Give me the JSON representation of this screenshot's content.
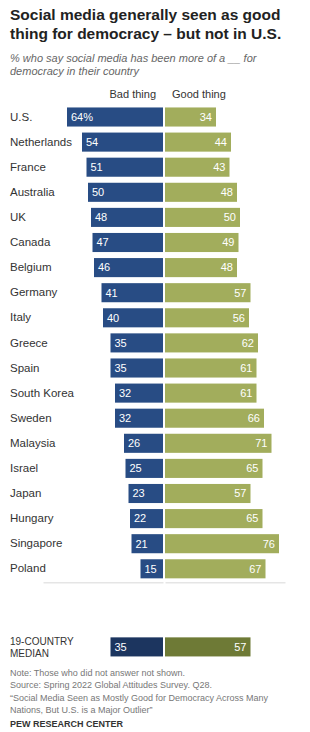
{
  "chart_data": {
    "type": "bar",
    "orientation": "horizontal",
    "title": "Social media generally seen as good thing for democracy – but not in U.S.",
    "subtitle": "% who say social media has been more of a __ for democracy in their country",
    "categories": [
      "U.S.",
      "Netherlands",
      "France",
      "Australia",
      "UK",
      "Canada",
      "Belgium",
      "Germany",
      "Italy",
      "Greece",
      "Spain",
      "South Korea",
      "Sweden",
      "Malaysia",
      "Israel",
      "Japan",
      "Hungary",
      "Singapore",
      "Poland",
      "19-COUNTRY MEDIAN"
    ],
    "series": [
      {
        "name": "Bad thing",
        "values": [
          64,
          54,
          51,
          50,
          48,
          47,
          46,
          41,
          40,
          35,
          35,
          32,
          32,
          26,
          25,
          23,
          22,
          21,
          15,
          35
        ],
        "value_labels": [
          "64%",
          "54",
          "51",
          "50",
          "48",
          "47",
          "46",
          "41",
          "40",
          "35",
          "35",
          "32",
          "32",
          "26",
          "25",
          "23",
          "22",
          "21",
          "15",
          "35"
        ],
        "colors": [
          "#284c84",
          "#284c84",
          "#284c84",
          "#284c84",
          "#284c84",
          "#284c84",
          "#284c84",
          "#284c84",
          "#284c84",
          "#284c84",
          "#284c84",
          "#284c84",
          "#284c84",
          "#284c84",
          "#284c84",
          "#284c84",
          "#284c84",
          "#284c84",
          "#284c84",
          "#1c355f"
        ]
      },
      {
        "name": "Good thing",
        "values": [
          34,
          44,
          43,
          48,
          50,
          49,
          48,
          57,
          56,
          62,
          61,
          61,
          66,
          71,
          65,
          57,
          65,
          76,
          67,
          57
        ],
        "colors": [
          "#a2ad5c",
          "#a2ad5c",
          "#a2ad5c",
          "#a2ad5c",
          "#a2ad5c",
          "#a2ad5c",
          "#a2ad5c",
          "#a2ad5c",
          "#a2ad5c",
          "#a2ad5c",
          "#a2ad5c",
          "#a2ad5c",
          "#a2ad5c",
          "#a2ad5c",
          "#a2ad5c",
          "#a2ad5c",
          "#a2ad5c",
          "#a2ad5c",
          "#a2ad5c",
          "#6e7a36"
        ]
      }
    ],
    "xlim": [
      0,
      80
    ],
    "data_labels": true,
    "tick_labels": "y",
    "notes": [
      "Note: Those who did not answer not shown.",
      "Source: Spring 2022 Global Attitudes Survey. Q28.",
      "“Social Media Seen as Mostly Good for Democracy Across Many",
      "Nations, But U.S. is a Major Outlier”"
    ],
    "credit": "PEW RESEARCH CENTER"
  }
}
